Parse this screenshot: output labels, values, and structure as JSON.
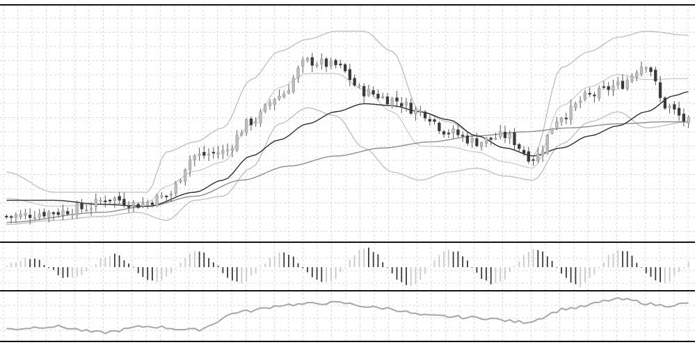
{
  "colors": {
    "background": "#ffffff",
    "grid": "#d9d9d9",
    "separator": "#111111",
    "candle_up": "#bdbdbd",
    "candle_down": "#3a3a3a",
    "wick": "#555555",
    "bollinger": "#bdbdbd",
    "ma_fast": "#2b2b2b",
    "ma_slow": "#8c8c8c",
    "histogram_up": "#c9c9c9",
    "histogram_down": "#3a3a3a",
    "oscillator": "#a6a6a6"
  },
  "chart_data": [
    {
      "type": "candlestick",
      "title": "",
      "xlabel": "",
      "ylabel": "",
      "grid": true,
      "ylim": [
        0,
        100
      ],
      "bars": 146,
      "close_anchors": [
        [
          0,
          8
        ],
        [
          10,
          10
        ],
        [
          16,
          12
        ],
        [
          22,
          17
        ],
        [
          28,
          14
        ],
        [
          34,
          18
        ],
        [
          40,
          38
        ],
        [
          46,
          40
        ],
        [
          52,
          55
        ],
        [
          58,
          68
        ],
        [
          64,
          85
        ],
        [
          70,
          83
        ],
        [
          76,
          70
        ],
        [
          82,
          66
        ],
        [
          88,
          60
        ],
        [
          94,
          50
        ],
        [
          100,
          45
        ],
        [
          106,
          48
        ],
        [
          112,
          37
        ],
        [
          118,
          58
        ],
        [
          124,
          68
        ],
        [
          130,
          73
        ],
        [
          136,
          84
        ],
        [
          140,
          63
        ],
        [
          145,
          55
        ]
      ],
      "bollinger_upper_anchors": [
        [
          0,
          30
        ],
        [
          10,
          20
        ],
        [
          20,
          20
        ],
        [
          30,
          20
        ],
        [
          34,
          40
        ],
        [
          40,
          45
        ],
        [
          46,
          52
        ],
        [
          52,
          76
        ],
        [
          58,
          90
        ],
        [
          64,
          96
        ],
        [
          70,
          100
        ],
        [
          76,
          100
        ],
        [
          82,
          90
        ],
        [
          88,
          60
        ],
        [
          94,
          55
        ],
        [
          100,
          48
        ],
        [
          106,
          42
        ],
        [
          112,
          38
        ],
        [
          118,
          82
        ],
        [
          124,
          90
        ],
        [
          130,
          97
        ],
        [
          136,
          100
        ],
        [
          145,
          98
        ]
      ],
      "bollinger_lower_anchors": [
        [
          0,
          4
        ],
        [
          10,
          6
        ],
        [
          20,
          8
        ],
        [
          28,
          10
        ],
        [
          34,
          6
        ],
        [
          40,
          16
        ],
        [
          46,
          18
        ],
        [
          52,
          32
        ],
        [
          58,
          54
        ],
        [
          64,
          62
        ],
        [
          70,
          58
        ],
        [
          76,
          42
        ],
        [
          82,
          30
        ],
        [
          88,
          26
        ],
        [
          94,
          30
        ],
        [
          100,
          32
        ],
        [
          106,
          28
        ],
        [
          112,
          26
        ],
        [
          118,
          44
        ],
        [
          124,
          55
        ],
        [
          130,
          60
        ],
        [
          136,
          52
        ],
        [
          145,
          55
        ]
      ],
      "ma_fast_anchors": [
        [
          0,
          16
        ],
        [
          10,
          16
        ],
        [
          20,
          14
        ],
        [
          30,
          13
        ],
        [
          40,
          20
        ],
        [
          46,
          26
        ],
        [
          52,
          38
        ],
        [
          58,
          46
        ],
        [
          64,
          54
        ],
        [
          70,
          60
        ],
        [
          76,
          64
        ],
        [
          82,
          63
        ],
        [
          88,
          60
        ],
        [
          94,
          56
        ],
        [
          100,
          48
        ],
        [
          106,
          42
        ],
        [
          112,
          38
        ],
        [
          118,
          42
        ],
        [
          124,
          48
        ],
        [
          130,
          53
        ],
        [
          136,
          60
        ],
        [
          142,
          68
        ],
        [
          145,
          70
        ]
      ],
      "ma_slow_anchors": [
        [
          0,
          5
        ],
        [
          20,
          10
        ],
        [
          30,
          13
        ],
        [
          40,
          18
        ],
        [
          50,
          26
        ],
        [
          60,
          33
        ],
        [
          70,
          38
        ],
        [
          80,
          42
        ],
        [
          90,
          45
        ],
        [
          100,
          48
        ],
        [
          110,
          50
        ],
        [
          120,
          52
        ],
        [
          130,
          54
        ],
        [
          140,
          55
        ],
        [
          145,
          55
        ]
      ]
    },
    {
      "type": "bar",
      "title": "",
      "ylabel": "",
      "ylim": [
        -1,
        1
      ],
      "wave_period_bars": 18,
      "amplitude_anchors": [
        [
          0,
          0.4
        ],
        [
          20,
          0.6
        ],
        [
          40,
          0.8
        ],
        [
          60,
          0.7
        ],
        [
          80,
          0.9
        ],
        [
          100,
          0.8
        ],
        [
          120,
          0.9
        ],
        [
          145,
          0.7
        ]
      ]
    },
    {
      "type": "line",
      "title": "",
      "ylabel": "",
      "ylim": [
        0,
        100
      ],
      "value_anchors": [
        [
          0,
          22
        ],
        [
          10,
          28
        ],
        [
          20,
          14
        ],
        [
          30,
          28
        ],
        [
          40,
          20
        ],
        [
          50,
          62
        ],
        [
          60,
          78
        ],
        [
          70,
          82
        ],
        [
          80,
          70
        ],
        [
          90,
          52
        ],
        [
          100,
          48
        ],
        [
          110,
          38
        ],
        [
          120,
          70
        ],
        [
          130,
          90
        ],
        [
          140,
          76
        ],
        [
          145,
          80
        ]
      ]
    }
  ]
}
